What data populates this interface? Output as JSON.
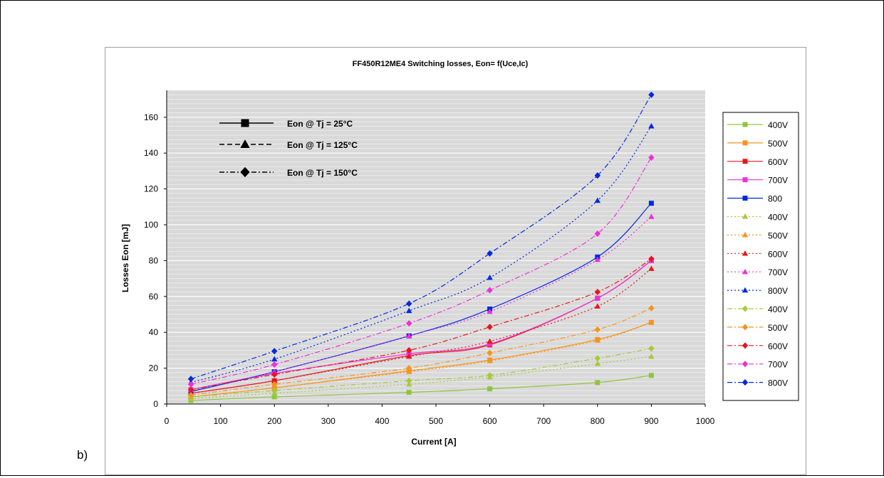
{
  "figure_label": "b)",
  "chart_data": {
    "type": "line",
    "title": "FF450R12ME4 Switching losses, Eon= f(Uce,Ic)",
    "xlabel": "Current [A]",
    "ylabel": "Losses Eon [mJ]",
    "xlim": [
      0,
      1000
    ],
    "ylim": [
      0,
      175
    ],
    "x_ticks": [
      "0",
      "100",
      "200",
      "300",
      "400",
      "500",
      "600",
      "700",
      "800",
      "900",
      "1000"
    ],
    "y_ticks": [
      "0",
      "20",
      "40",
      "60",
      "80",
      "100",
      "120",
      "140",
      "160"
    ],
    "grid": "horizontal",
    "legend_position": "right",
    "style_key": [
      {
        "label": "Eon @ Tj = 25°C",
        "dash": "solid",
        "marker": "square"
      },
      {
        "label": "Eon @ Tj = 125°C",
        "dash": "dash",
        "marker": "triangle"
      },
      {
        "label": "Eon @ Tj = 150°C",
        "dash": "dashdot",
        "marker": "diamond"
      }
    ],
    "series": [
      {
        "name": "400V",
        "color": "#8dc63f",
        "dash": "solid",
        "marker": "square",
        "x": [
          45,
          200,
          450,
          600,
          800,
          900
        ],
        "y": [
          2,
          4,
          6.5,
          8.5,
          12,
          16
        ]
      },
      {
        "name": "500V",
        "color": "#f7941d",
        "dash": "solid",
        "marker": "square",
        "x": [
          45,
          200,
          450,
          600,
          800,
          900
        ],
        "y": [
          4,
          9,
          18.5,
          24.5,
          36,
          45.5
        ]
      },
      {
        "name": "600V",
        "color": "#e8161d",
        "dash": "solid",
        "marker": "square",
        "x": [
          45,
          200,
          450,
          600,
          800,
          900
        ],
        "y": [
          6,
          13,
          27,
          33,
          59,
          80
        ]
      },
      {
        "name": "700V",
        "color": "#ee2fd9",
        "dash": "solid",
        "marker": "square",
        "x": [
          45,
          200,
          450,
          600,
          800,
          900
        ],
        "y": [
          8,
          17,
          28,
          33.5,
          59,
          80
        ]
      },
      {
        "name": "800",
        "color": "#0028e0",
        "dash": "solid",
        "marker": "square",
        "x": [
          45,
          200,
          450,
          600,
          800,
          900
        ],
        "y": [
          7,
          18,
          38,
          53,
          82,
          112
        ]
      },
      {
        "name": "400V",
        "color": "#a6c93a",
        "dash": "dot",
        "marker": "triangle",
        "x": [
          45,
          200,
          450,
          600,
          800,
          900
        ],
        "y": [
          3,
          6,
          11,
          15,
          22.5,
          26.5
        ]
      },
      {
        "name": "500V",
        "color": "#f7941d",
        "dash": "dot",
        "marker": "triangle",
        "x": [
          45,
          200,
          450,
          600,
          800,
          900
        ],
        "y": [
          4,
          9,
          18,
          24,
          35.5,
          45.5
        ]
      },
      {
        "name": "600V",
        "color": "#e8161d",
        "dash": "dot",
        "marker": "triangle",
        "x": [
          45,
          200,
          450,
          600,
          800,
          900
        ],
        "y": [
          6,
          13,
          26.5,
          35,
          54.5,
          75.5
        ]
      },
      {
        "name": "700V",
        "color": "#ee2fd9",
        "dash": "dot",
        "marker": "triangle",
        "x": [
          45,
          200,
          450,
          600,
          800,
          900
        ],
        "y": [
          8,
          18,
          38,
          51.5,
          80.5,
          104.5
        ]
      },
      {
        "name": "800V",
        "color": "#0028e0",
        "dash": "dot",
        "marker": "triangle",
        "x": [
          45,
          200,
          450,
          600,
          800,
          900
        ],
        "y": [
          12,
          25,
          52,
          70.5,
          113.5,
          155
        ]
      },
      {
        "name": "400V",
        "color": "#a6c93a",
        "dash": "dashdot",
        "marker": "diamond",
        "x": [
          45,
          200,
          450,
          600,
          800,
          900
        ],
        "y": [
          4,
          7.5,
          13,
          16,
          25.5,
          31
        ]
      },
      {
        "name": "500V",
        "color": "#f7941d",
        "dash": "dashdot",
        "marker": "diamond",
        "x": [
          45,
          200,
          450,
          600,
          800,
          900
        ],
        "y": [
          5,
          11,
          20,
          28.5,
          41.5,
          53.5
        ]
      },
      {
        "name": "600V",
        "color": "#e8161d",
        "dash": "dashdot",
        "marker": "diamond",
        "x": [
          45,
          200,
          450,
          600,
          800,
          900
        ],
        "y": [
          8,
          16.5,
          30,
          43,
          62.5,
          81
        ]
      },
      {
        "name": "700V",
        "color": "#ee2fd9",
        "dash": "dashdot",
        "marker": "diamond",
        "x": [
          45,
          200,
          450,
          600,
          800,
          900
        ],
        "y": [
          11,
          22,
          45,
          63.5,
          95,
          137.5
        ]
      },
      {
        "name": "800V",
        "color": "#0028e0",
        "dash": "dashdot",
        "marker": "diamond",
        "x": [
          45,
          200,
          450,
          600,
          800,
          900
        ],
        "y": [
          14,
          29.5,
          56,
          84,
          127.5,
          172.5
        ]
      }
    ]
  }
}
